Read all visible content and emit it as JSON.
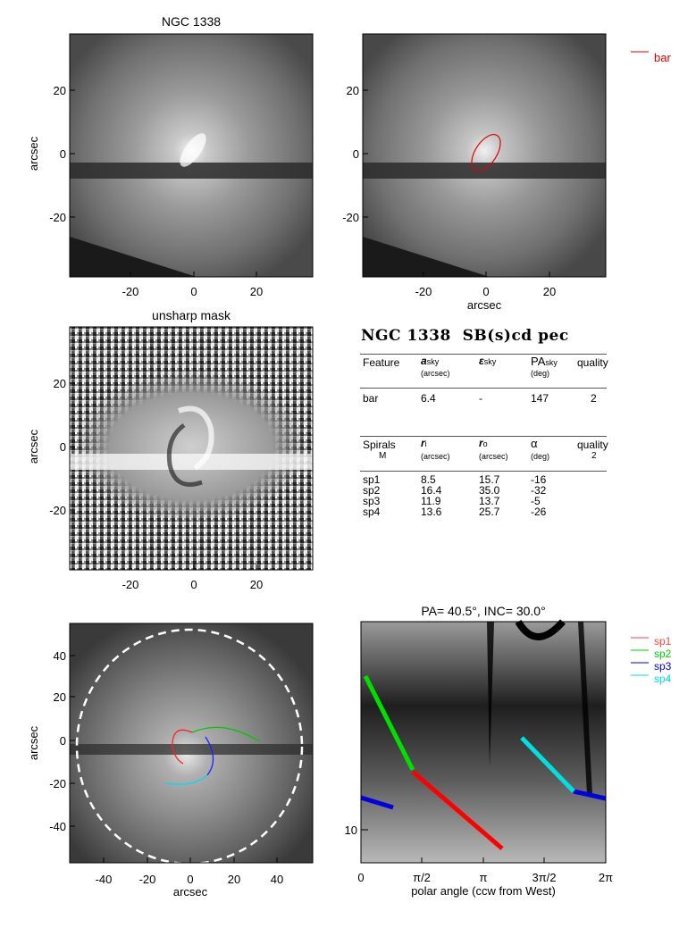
{
  "panels": {
    "top_left": {
      "title": "NGC 1338",
      "ylabel": "arcsec",
      "xticks": [
        "-20",
        "0",
        "20"
      ],
      "yticks": [
        "20",
        "0",
        "-20"
      ]
    },
    "top_right": {
      "xlabel": "arcsec",
      "xticks": [
        "-20",
        "0",
        "20"
      ],
      "yticks": [
        "20",
        "0",
        "-20"
      ],
      "legend": {
        "label": "bar",
        "color": "#e00000"
      }
    },
    "middle_left": {
      "title": "unsharp mask",
      "ylabel": "arcsec",
      "xticks": [
        "-20",
        "0",
        "20"
      ],
      "yticks": [
        "20",
        "0",
        "-20"
      ]
    },
    "bottom_left": {
      "ylabel": "arcsec",
      "xlabel": "arcsec",
      "xticks": [
        "-40",
        "-20",
        "0",
        "20",
        "40"
      ],
      "yticks": [
        "40",
        "20",
        "0",
        "-20",
        "-40"
      ]
    },
    "bottom_right": {
      "title": "PA= 40.5°, INC= 30.0°",
      "xlabel": "polar angle (ccw from West)",
      "xticks": [
        "0",
        "π/2",
        "π",
        "3π/2",
        "2π"
      ],
      "ytick": "10",
      "legend": [
        {
          "label": "sp1",
          "color": "#ff4040"
        },
        {
          "label": "sp2",
          "color": "#00d000"
        },
        {
          "label": "sp3",
          "color": "#0000e0"
        },
        {
          "label": "sp4",
          "color": "#00e0e0"
        }
      ]
    }
  },
  "table": {
    "heading": "NGC 1338  SB(s)cd pec",
    "bar_header": {
      "feature": "Feature",
      "a": "a",
      "a_sub": "sky",
      "a_unit": "(arcsec)",
      "e": "ε",
      "e_sub": "sky",
      "pa": "PA",
      "pa_sub": "sky",
      "pa_unit": "(deg)",
      "quality": "quality"
    },
    "bar_row": {
      "feature": "bar",
      "a": "6.4",
      "e": "-",
      "pa": "147",
      "quality": "2"
    },
    "spiral_header": {
      "feature": "Spirals",
      "m": "M",
      "ri": "r",
      "ri_sub": "i",
      "ri_unit": "(arcsec)",
      "ro": "r",
      "ro_sub": "o",
      "ro_unit": "(arcsec)",
      "alpha": "α",
      "alpha_unit": "(deg)",
      "quality": "quality",
      "quality_value": "2"
    },
    "spiral_rows": [
      {
        "name": "sp1",
        "ri": "8.5",
        "ro": "15.7",
        "alpha": "-16"
      },
      {
        "name": "sp2",
        "ri": "16.4",
        "ro": "35.0",
        "alpha": "-32"
      },
      {
        "name": "sp3",
        "ri": "11.9",
        "ro": "13.7",
        "alpha": "-5"
      },
      {
        "name": "sp4",
        "ri": "13.6",
        "ro": "25.7",
        "alpha": "-26"
      }
    ]
  }
}
